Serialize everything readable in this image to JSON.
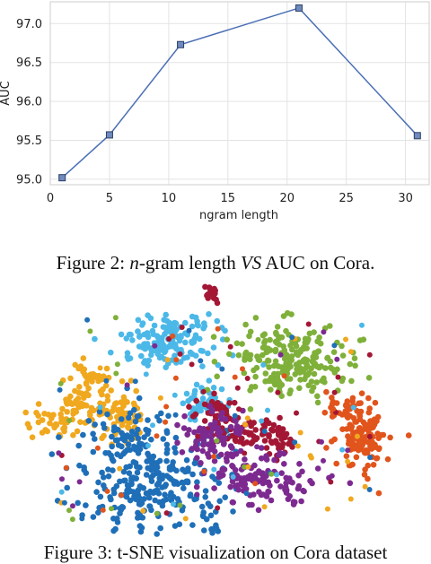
{
  "chart_data": {
    "type": "line",
    "x": [
      1,
      5,
      11,
      21,
      31
    ],
    "series": [
      {
        "values": [
          95.02,
          95.57,
          96.73,
          97.2,
          95.56
        ]
      }
    ],
    "xlabel": "ngram length",
    "ylabel": "AUC",
    "xlim": [
      0,
      32
    ],
    "ylim": [
      94.93,
      97.28
    ],
    "xticks": [
      0,
      5,
      10,
      15,
      20,
      25,
      30
    ],
    "yticks": [
      95.0,
      95.5,
      96.0,
      96.5,
      97.0
    ],
    "xtick_labels": [
      "0",
      "5",
      "10",
      "15",
      "20",
      "25",
      "30"
    ],
    "ytick_labels": [
      "95.0",
      "95.5",
      "96.0",
      "96.5",
      "97.0"
    ],
    "grid": true,
    "line_color": "#4a6fb5",
    "marker_color": "#6f8bbd"
  },
  "figure2_caption": {
    "prefix": "Figure 2: ",
    "math": "n",
    "mid": "-gram length ",
    "vs": "VS",
    "suffix": " AUC on Cora."
  },
  "figure3": {
    "caption": "Figure 3: t-SNE visualization on Cora dataset",
    "cluster_colors": {
      "red": "#a31735",
      "light_blue": "#4bb8e8",
      "green": "#7fb03a",
      "yellow": "#f0a81f",
      "purple": "#7d2a90",
      "orange": "#e1541c",
      "blue": "#1f6fb8"
    }
  }
}
